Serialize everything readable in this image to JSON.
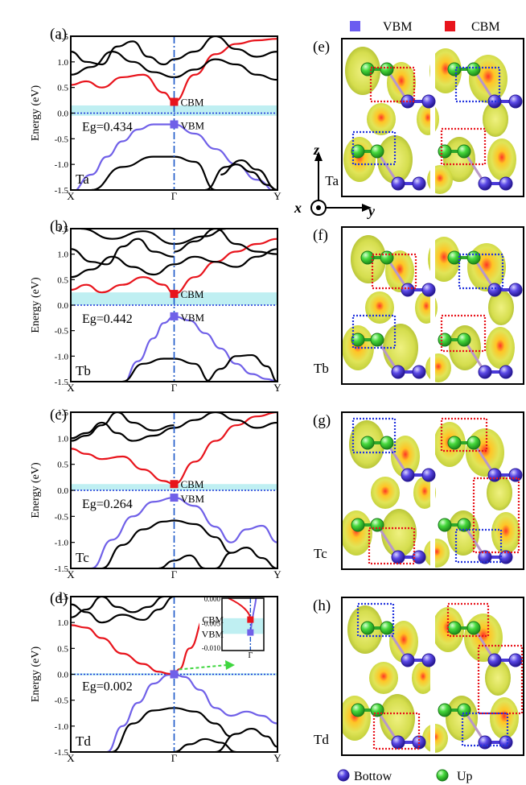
{
  "legend_top": {
    "vbm": "VBM",
    "cbm": "CBM",
    "vbm_color": "#6b5cf0",
    "cbm_color": "#e8141c"
  },
  "legend_bottom": {
    "bottom": "Bottow",
    "up": "Up",
    "bottom_color": "#4a3ad8",
    "up_color": "#3fd63f"
  },
  "axes": {
    "x": "x",
    "y": "y",
    "z": "z"
  },
  "y_axis_label": "Energy (eV)",
  "colors": {
    "valence": "#7060e8",
    "conduction": "#e8141c",
    "bands": "#000000",
    "gap": "#bfeff2",
    "fermi": "#1a34d8",
    "gamma_line": "#1a56c8",
    "iso": "#d8e050",
    "box_red": "#e8141c",
    "box_blue": "#2233dd"
  },
  "chart_data": [
    {
      "type": "line",
      "panel": "(a)",
      "material": "Ta",
      "gap_label": "Eg=0.434",
      "xlabel": "",
      "ylabel": "Energy (eV)",
      "ylim": [
        -1.5,
        1.5
      ],
      "yticks": [
        "1.5",
        "1.0",
        "0.5",
        "0.0",
        "-0.5",
        "-1.0",
        "-1.5"
      ],
      "xticks": [
        "X",
        "Γ",
        "Y"
      ],
      "cbm_label": "CBM",
      "vbm_label": "VBM",
      "cbm": 0.22,
      "vbm": -0.22,
      "gap_band": [
        -0.05,
        0.15
      ],
      "series": [
        {
          "name": "valence",
          "x": [
            0,
            0.2,
            0.35,
            0.5,
            0.65,
            0.8,
            1.0,
            1.2,
            1.4,
            1.6,
            1.8,
            2.0
          ],
          "y": [
            -1.55,
            -1.2,
            -0.85,
            -0.55,
            -0.32,
            -0.22,
            -0.22,
            -0.4,
            -0.7,
            -1.0,
            -1.3,
            -1.55
          ]
        },
        {
          "name": "conduction",
          "x": [
            0,
            0.15,
            0.3,
            0.5,
            0.7,
            0.9,
            1.0,
            1.2,
            1.4,
            1.6,
            1.8,
            2.0
          ],
          "y": [
            0.55,
            0.62,
            0.5,
            0.7,
            0.75,
            0.4,
            0.22,
            0.75,
            1.15,
            1.35,
            1.42,
            1.45
          ]
        },
        {
          "name": "band3",
          "x": [
            0,
            0.2,
            0.4,
            0.6,
            0.8,
            1.0,
            1.2,
            1.4,
            1.6,
            1.8,
            2.0
          ],
          "y": [
            0.75,
            0.9,
            1.2,
            1.0,
            0.8,
            0.7,
            0.85,
            1.05,
            0.95,
            0.75,
            0.65
          ]
        },
        {
          "name": "band4",
          "x": [
            0,
            0.15,
            0.3,
            0.45,
            0.6,
            0.75,
            0.9,
            1.0
          ],
          "y": [
            1.2,
            1.0,
            0.95,
            1.3,
            1.4,
            1.1,
            0.95,
            1.05
          ]
        },
        {
          "name": "band5",
          "x": [
            1.0,
            1.2,
            1.4,
            1.6,
            1.8,
            2.0
          ],
          "y": [
            1.05,
            1.2,
            1.5,
            1.25,
            1.1,
            1.2
          ]
        },
        {
          "name": "band6",
          "x": [
            0.2,
            0.5,
            0.8,
            1.0,
            1.2,
            1.4
          ],
          "y": [
            -1.5,
            -1.05,
            -0.85,
            -0.85,
            -0.95,
            -1.5
          ]
        },
        {
          "name": "band7",
          "x": [
            1.3,
            1.5,
            1.65,
            1.8,
            2.0
          ],
          "y": [
            -1.5,
            -1.05,
            -0.92,
            -1.1,
            -1.5
          ]
        },
        {
          "name": "band8",
          "x": [
            1.45,
            1.6,
            1.75,
            1.9,
            2.0
          ],
          "y": [
            -1.2,
            -1.0,
            -1.15,
            -1.4,
            -1.5
          ]
        }
      ]
    },
    {
      "type": "line",
      "panel": "(b)",
      "material": "Tb",
      "gap_label": "Eg=0.442",
      "xlabel": "",
      "ylabel": "Energy (eV)",
      "ylim": [
        -1.5,
        1.5
      ],
      "yticks": [
        "1.5",
        "1.0",
        "0.5",
        "0.0",
        "-0.5",
        "-1.0",
        "-1.5"
      ],
      "xticks": [
        "X",
        "Γ",
        "Y"
      ],
      "cbm_label": "CBM",
      "vbm_label": "VBM",
      "cbm": 0.22,
      "vbm": -0.22,
      "gap_band": [
        0.0,
        0.25
      ],
      "series": [
        {
          "name": "valence",
          "x": [
            0.5,
            0.65,
            0.8,
            0.9,
            1.0,
            1.15,
            1.3,
            1.45,
            1.6,
            1.75,
            1.9,
            2.0
          ],
          "y": [
            -1.55,
            -1.1,
            -0.65,
            -0.35,
            -0.22,
            -0.3,
            -0.55,
            -0.85,
            -1.15,
            -1.35,
            -1.45,
            -1.5
          ]
        },
        {
          "name": "conduction",
          "x": [
            0,
            0.15,
            0.3,
            0.5,
            0.7,
            0.9,
            1.0,
            1.2,
            1.4,
            1.6,
            1.8,
            2.0
          ],
          "y": [
            0.3,
            0.4,
            0.25,
            0.4,
            0.55,
            0.4,
            0.22,
            0.55,
            0.85,
            1.05,
            1.2,
            1.3
          ]
        },
        {
          "name": "band3",
          "x": [
            0,
            0.2,
            0.4,
            0.6,
            0.8,
            1.0,
            1.2,
            1.4,
            1.6,
            1.8,
            2.0
          ],
          "y": [
            0.55,
            0.7,
            0.95,
            0.75,
            0.6,
            0.8,
            0.95,
            0.85,
            0.75,
            0.95,
            1.1
          ]
        },
        {
          "name": "band4",
          "x": [
            0,
            0.2,
            0.35,
            0.5,
            0.65,
            0.8,
            1.0
          ],
          "y": [
            1.1,
            0.85,
            0.8,
            1.15,
            1.3,
            1.05,
            0.95
          ]
        },
        {
          "name": "band5",
          "x": [
            1.0,
            1.2,
            1.4,
            1.6,
            1.8,
            2.0
          ],
          "y": [
            1.05,
            1.25,
            1.5,
            1.2,
            1.05,
            1.0
          ]
        },
        {
          "name": "band6",
          "x": [
            0.1,
            0.4,
            0.7,
            1.0,
            1.3,
            1.5
          ],
          "y": [
            1.5,
            1.3,
            1.45,
            1.2,
            1.35,
            1.5
          ]
        },
        {
          "name": "band7",
          "x": [
            0.5,
            0.7,
            0.9,
            1.0,
            1.2,
            1.35
          ],
          "y": [
            -1.5,
            -1.15,
            -1.05,
            -1.05,
            -1.15,
            -1.5
          ]
        },
        {
          "name": "band8",
          "x": [
            1.3,
            1.45,
            1.6,
            1.75,
            1.9,
            2.0
          ],
          "y": [
            -1.5,
            -1.25,
            -1.0,
            -0.98,
            -1.2,
            -1.5
          ]
        }
      ]
    },
    {
      "type": "line",
      "panel": "(c)",
      "material": "Tc",
      "gap_label": "Eg=0.264",
      "xlabel": "",
      "ylabel": "Energy (eV)",
      "ylim": [
        -1.5,
        1.5
      ],
      "yticks": [
        "1.5",
        "1.0",
        "0.5",
        "0.0",
        "-0.5",
        "-1.0",
        "-1.5"
      ],
      "xticks": [
        "X",
        "Γ",
        "Y"
      ],
      "cbm_label": "CBM",
      "vbm_label": "VBM",
      "cbm": 0.12,
      "vbm": -0.14,
      "gap_band": [
        0.0,
        0.12
      ],
      "series": [
        {
          "name": "valence",
          "x": [
            0.2,
            0.4,
            0.6,
            0.8,
            1.0,
            1.2,
            1.4,
            1.55,
            1.7,
            1.85,
            2.0
          ],
          "y": [
            -1.5,
            -0.95,
            -0.5,
            -0.22,
            -0.14,
            -0.3,
            -0.7,
            -1.0,
            -0.75,
            -0.68,
            -1.0
          ]
        },
        {
          "name": "conduction",
          "x": [
            0,
            0.15,
            0.3,
            0.5,
            0.7,
            0.9,
            1.0,
            1.2,
            1.4,
            1.6,
            1.8,
            2.0
          ],
          "y": [
            0.8,
            0.7,
            0.6,
            0.65,
            0.4,
            0.18,
            0.12,
            0.55,
            0.95,
            1.25,
            1.42,
            1.5
          ]
        },
        {
          "name": "band3",
          "x": [
            0,
            0.15,
            0.3,
            0.45,
            0.6,
            0.8,
            1.0,
            1.2,
            1.4,
            1.6,
            1.8,
            2.0
          ],
          "y": [
            1.0,
            1.1,
            1.3,
            1.1,
            0.95,
            1.05,
            1.2,
            1.35,
            1.5,
            1.35,
            1.2,
            1.3
          ]
        },
        {
          "name": "band4",
          "x": [
            0,
            0.15,
            0.3,
            0.45,
            0.6,
            0.8,
            1.0
          ],
          "y": [
            0.95,
            1.05,
            1.25,
            1.5,
            1.3,
            1.15,
            1.25
          ]
        },
        {
          "name": "band5",
          "x": [
            0.3,
            0.5,
            0.7,
            0.9,
            1.0,
            1.2,
            1.4,
            1.55
          ],
          "y": [
            -1.5,
            -1.05,
            -0.75,
            -0.6,
            -0.58,
            -0.65,
            -0.9,
            -1.2
          ]
        },
        {
          "name": "band6",
          "x": [
            0.85,
            1.0,
            1.15,
            1.3
          ],
          "y": [
            -1.5,
            -1.35,
            -1.25,
            -1.5
          ]
        },
        {
          "name": "band7",
          "x": [
            1.4,
            1.55,
            1.7,
            1.85,
            2.0
          ],
          "y": [
            -1.5,
            -1.2,
            -1.1,
            -1.3,
            -1.5
          ]
        }
      ]
    },
    {
      "type": "line",
      "panel": "(d)",
      "material": "Td",
      "gap_label": "Eg=0.002",
      "xlabel": "",
      "ylabel": "Energy (eV)",
      "ylim": [
        -1.5,
        1.5
      ],
      "yticks": [
        "1.5",
        "1.0",
        "0.5",
        "0.0",
        "-0.5",
        "-1.0",
        "-1.5"
      ],
      "xticks": [
        "X",
        "Γ",
        "Y"
      ],
      "cbm_label": "CBM",
      "vbm_label": "VBM",
      "cbm": 0.001,
      "vbm": -0.001,
      "gap_band": [
        -0.02,
        0.02
      ],
      "inset": {
        "yticks": [
          "0.000",
          "-0.005",
          "-0.010"
        ],
        "xtick": "Γ",
        "cbm": -0.0045,
        "vbm": -0.0072,
        "gap_band": [
          -0.0075,
          -0.0042
        ]
      },
      "series": [
        {
          "name": "valence",
          "x": [
            0.35,
            0.5,
            0.65,
            0.8,
            0.95,
            1.0,
            1.1,
            1.25,
            1.4,
            1.55,
            1.7,
            1.85,
            2.0
          ],
          "y": [
            -1.5,
            -1.0,
            -0.55,
            -0.18,
            -0.01,
            0.0,
            -0.05,
            -0.3,
            -0.65,
            -0.8,
            -0.72,
            -0.8,
            -0.95
          ]
        },
        {
          "name": "conduction",
          "x": [
            0,
            0.15,
            0.3,
            0.5,
            0.7,
            0.85,
            0.95,
            1.0,
            1.05,
            1.15,
            1.3,
            1.45
          ],
          "y": [
            0.95,
            0.9,
            0.7,
            0.4,
            0.2,
            0.05,
            0.01,
            0.0,
            0.1,
            0.5,
            1.1,
            1.5
          ]
        },
        {
          "name": "band3",
          "x": [
            0,
            0.15,
            0.3,
            0.45,
            0.6,
            0.75,
            0.9
          ],
          "y": [
            1.1,
            1.25,
            1.5,
            1.3,
            1.2,
            1.3,
            1.5
          ]
        },
        {
          "name": "band4",
          "x": [
            0,
            0.15,
            0.3,
            0.5,
            0.7,
            0.85,
            1.0
          ],
          "y": [
            1.35,
            1.2,
            1.0,
            1.15,
            1.05,
            1.25,
            1.5
          ]
        },
        {
          "name": "band5",
          "x": [
            0.4,
            0.6,
            0.8,
            1.0,
            1.2,
            1.4,
            1.55
          ],
          "y": [
            -1.5,
            -0.95,
            -0.7,
            -0.65,
            -0.72,
            -0.95,
            -1.2
          ]
        },
        {
          "name": "band6",
          "x": [
            1.0,
            1.15,
            1.3,
            1.45,
            1.6
          ],
          "y": [
            -1.5,
            -1.35,
            -1.25,
            -1.32,
            -1.5
          ]
        },
        {
          "name": "band7",
          "x": [
            1.4,
            1.6,
            1.75,
            1.9,
            2.0
          ],
          "y": [
            -1.5,
            -1.15,
            -1.05,
            -1.2,
            -1.4
          ]
        }
      ]
    }
  ],
  "isosurface_panels": [
    {
      "label": "(e)",
      "material": "Ta"
    },
    {
      "label": "(f)",
      "material": "Tb"
    },
    {
      "label": "(g)",
      "material": "Tc"
    },
    {
      "label": "(h)",
      "material": "Td"
    }
  ]
}
